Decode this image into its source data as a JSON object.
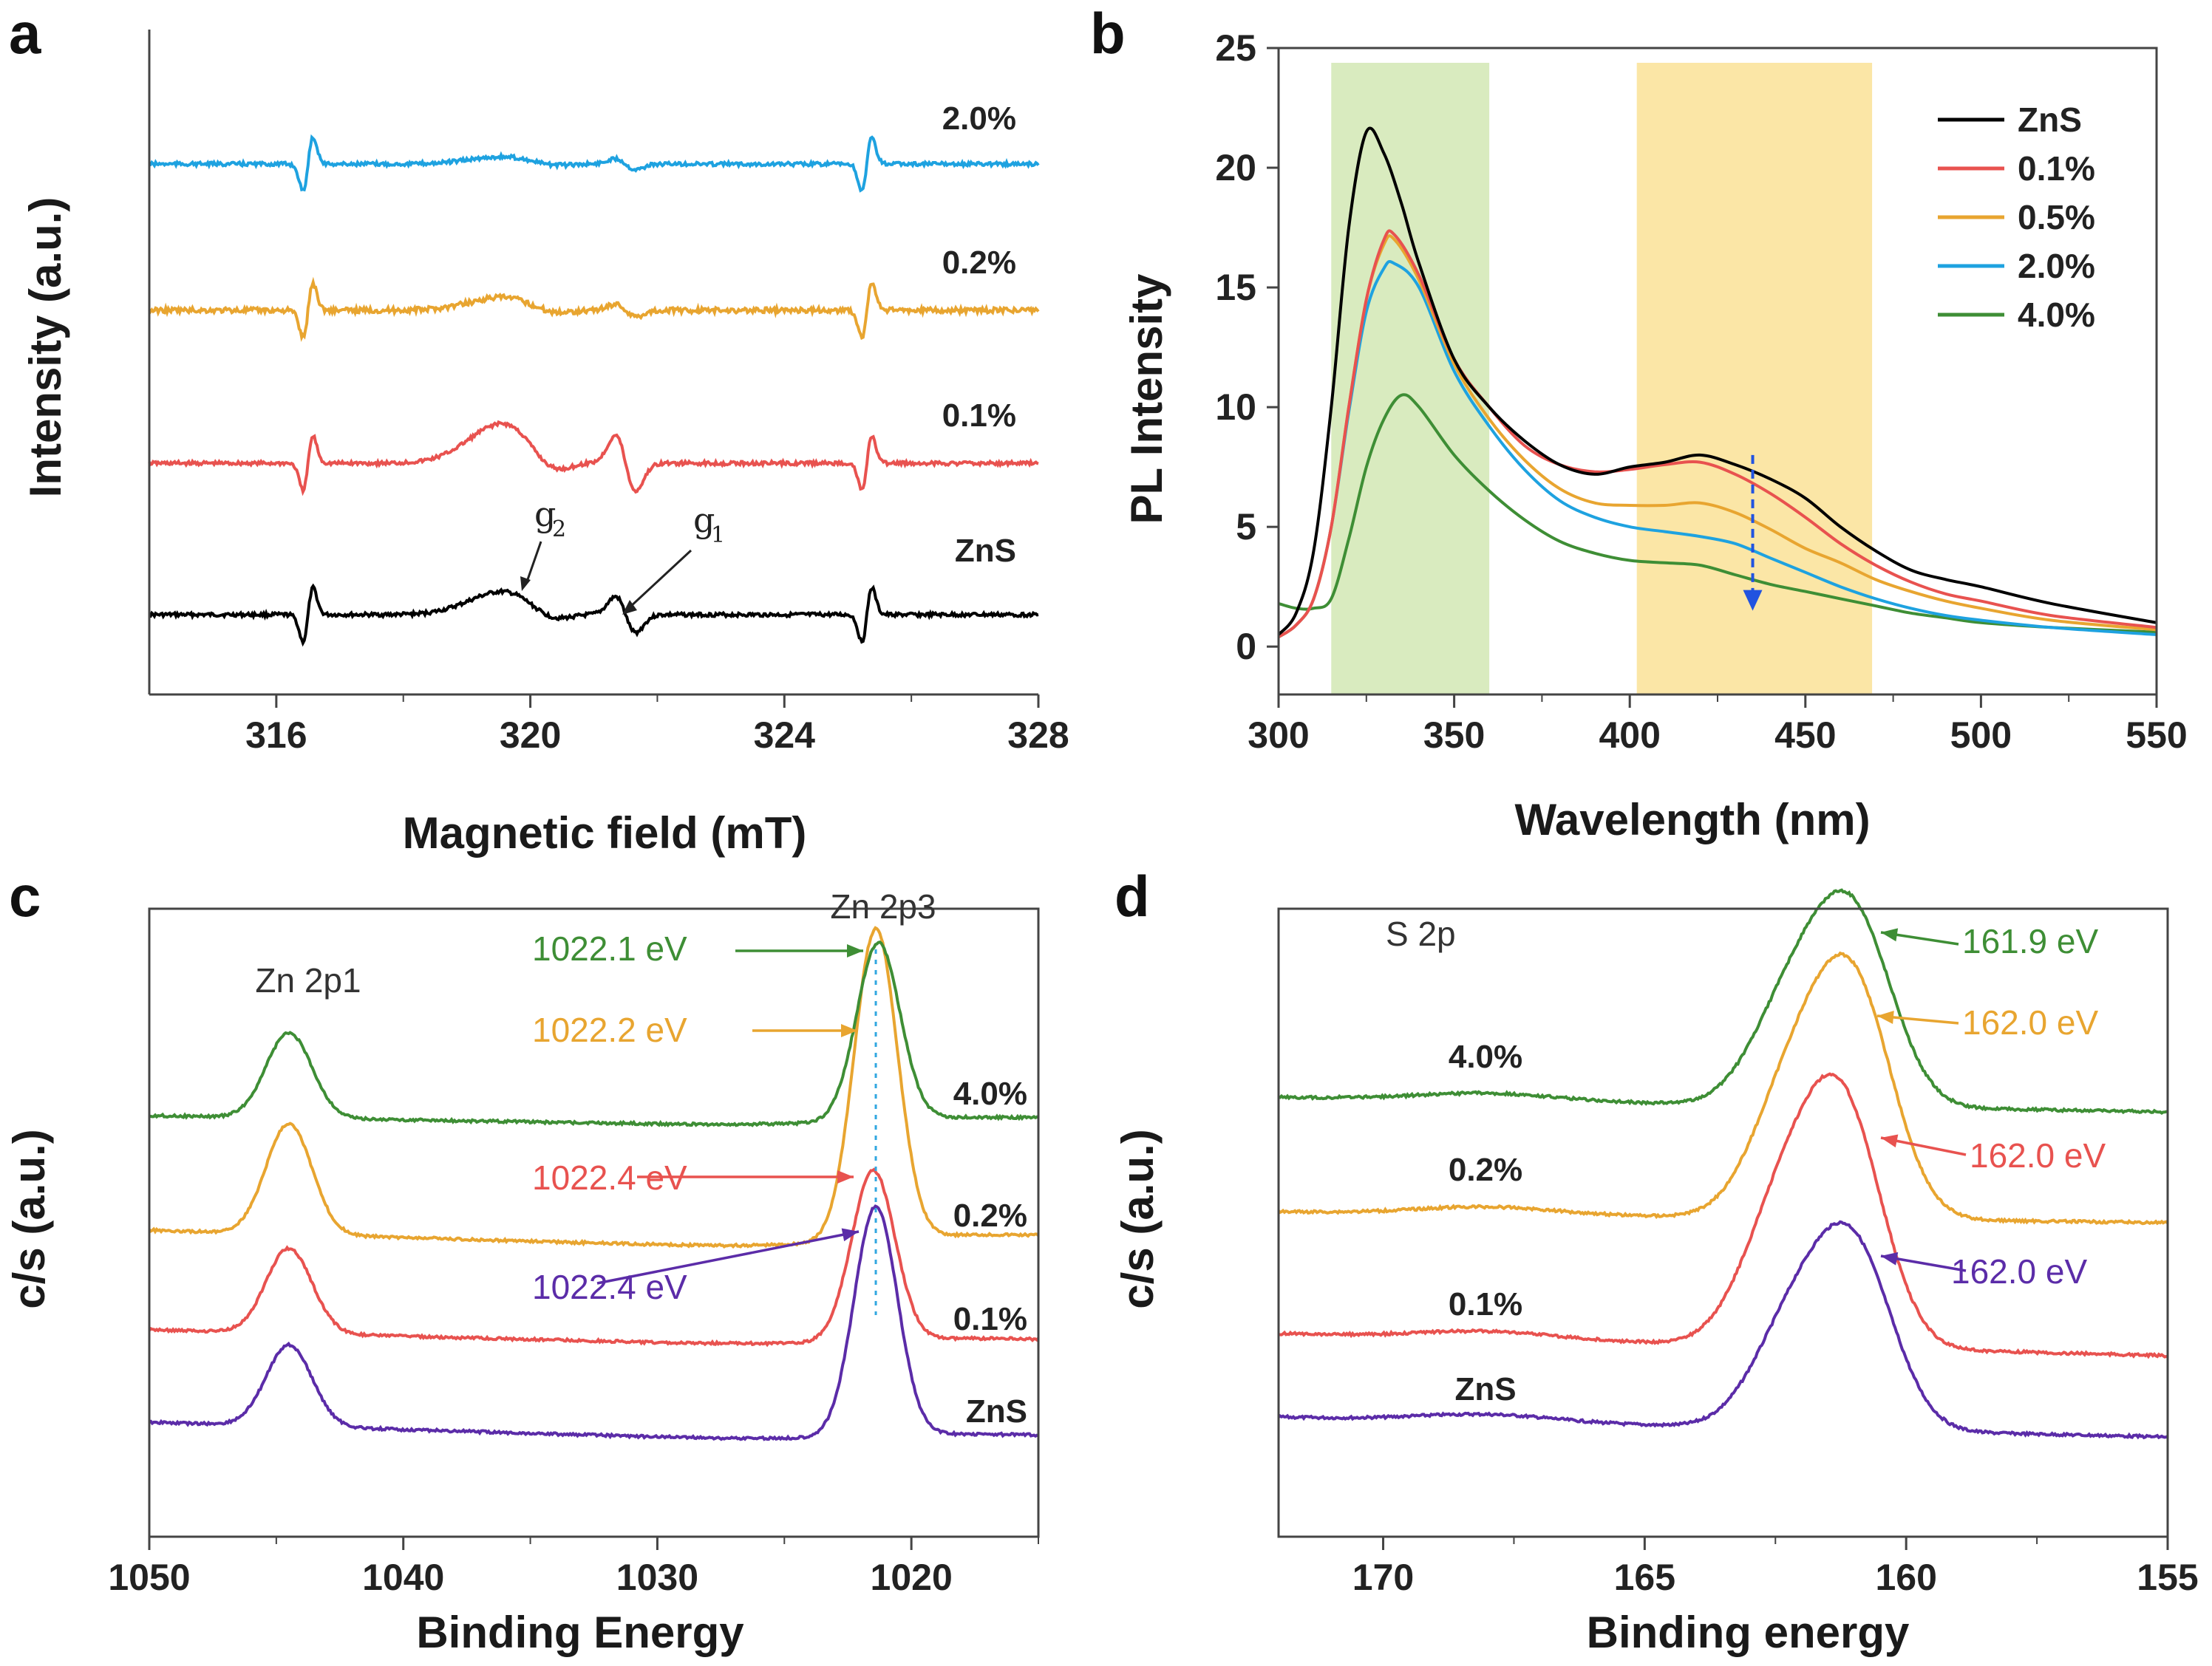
{
  "chart_data": [
    {
      "panel": "a",
      "type": "line",
      "xlabel": "Magnetic field (mT)",
      "ylabel": "Intensity (a.u.)",
      "xlim": [
        314,
        328
      ],
      "x_ticks": [
        "316",
        "320",
        "324",
        "328"
      ],
      "series": [
        {
          "name": "ZnS",
          "color": "#000000"
        },
        {
          "name": "0.1%",
          "color": "#e8524f"
        },
        {
          "name": "0.2%",
          "color": "#e8a530"
        },
        {
          "name": "2.0%",
          "color": "#1ea2e0"
        }
      ],
      "features": {
        "sharp_lines_mT": [
          316.5,
          325.3
        ],
        "g2_mT": 319.8,
        "g1_mT": 321.5
      },
      "annotations": {
        "g2": "g",
        "g2_sub": "2",
        "g1": "g",
        "g1_sub": "1"
      }
    },
    {
      "panel": "b",
      "type": "line",
      "xlabel": "Wavelength (nm)",
      "ylabel": "PL Intensity",
      "xlim": [
        300,
        550
      ],
      "ylim": [
        -2,
        25
      ],
      "x_ticks": [
        "300",
        "350",
        "400",
        "450",
        "500",
        "550"
      ],
      "y_ticks": [
        "0",
        "5",
        "10",
        "15",
        "20",
        "25"
      ],
      "shaded_regions": [
        {
          "x0": 315,
          "x1": 360,
          "color": "#d9ebbf"
        },
        {
          "x0": 402,
          "x1": 469,
          "color": "#fbe6a6"
        }
      ],
      "arrow": {
        "x": 435,
        "y_from": 8.0,
        "y_to": 1.5,
        "color": "#2153e0"
      },
      "series": [
        {
          "name": "ZnS",
          "color": "#000000",
          "points": [
            [
              300,
              0.5
            ],
            [
              305,
              1.4
            ],
            [
              310,
              4
            ],
            [
              315,
              10
            ],
            [
              320,
              17.5
            ],
            [
              325,
              21.5
            ],
            [
              330,
              20.6
            ],
            [
              335,
              18.5
            ],
            [
              340,
              16
            ],
            [
              350,
              12
            ],
            [
              360,
              10
            ],
            [
              370,
              8.6
            ],
            [
              380,
              7.6
            ],
            [
              390,
              7.2
            ],
            [
              400,
              7.5
            ],
            [
              410,
              7.7
            ],
            [
              420,
              8.0
            ],
            [
              430,
              7.6
            ],
            [
              440,
              7.0
            ],
            [
              450,
              6.2
            ],
            [
              460,
              5.0
            ],
            [
              470,
              4.0
            ],
            [
              480,
              3.2
            ],
            [
              490,
              2.8
            ],
            [
              500,
              2.5
            ],
            [
              520,
              1.8
            ],
            [
              550,
              1.0
            ]
          ]
        },
        {
          "name": "0.1%",
          "color": "#e8524f",
          "points": [
            [
              300,
              0.4
            ],
            [
              305,
              0.9
            ],
            [
              310,
              2
            ],
            [
              315,
              5
            ],
            [
              320,
              10
            ],
            [
              325,
              14.5
            ],
            [
              330,
              17.0
            ],
            [
              333,
              17.2
            ],
            [
              340,
              15.5
            ],
            [
              350,
              12
            ],
            [
              360,
              10
            ],
            [
              370,
              8.4
            ],
            [
              380,
              7.6
            ],
            [
              390,
              7.3
            ],
            [
              400,
              7.4
            ],
            [
              410,
              7.6
            ],
            [
              420,
              7.7
            ],
            [
              430,
              7.2
            ],
            [
              440,
              6.4
            ],
            [
              450,
              5.4
            ],
            [
              460,
              4.3
            ],
            [
              470,
              3.4
            ],
            [
              480,
              2.7
            ],
            [
              490,
              2.2
            ],
            [
              500,
              1.9
            ],
            [
              520,
              1.3
            ],
            [
              550,
              0.8
            ]
          ]
        },
        {
          "name": "0.5%",
          "color": "#e8a530",
          "points": [
            [
              300,
              0.4
            ],
            [
              305,
              0.9
            ],
            [
              310,
              2
            ],
            [
              315,
              5
            ],
            [
              320,
              10
            ],
            [
              325,
              14.5
            ],
            [
              330,
              16.8
            ],
            [
              333,
              17.0
            ],
            [
              340,
              15.3
            ],
            [
              350,
              11.8
            ],
            [
              360,
              9.5
            ],
            [
              370,
              7.8
            ],
            [
              380,
              6.6
            ],
            [
              390,
              6.0
            ],
            [
              400,
              5.9
            ],
            [
              410,
              5.9
            ],
            [
              420,
              6.0
            ],
            [
              430,
              5.6
            ],
            [
              440,
              4.9
            ],
            [
              450,
              4.1
            ],
            [
              460,
              3.5
            ],
            [
              470,
              2.8
            ],
            [
              480,
              2.3
            ],
            [
              490,
              1.9
            ],
            [
              500,
              1.6
            ],
            [
              520,
              1.1
            ],
            [
              550,
              0.7
            ]
          ]
        },
        {
          "name": "2.0%",
          "color": "#1ea2e0",
          "points": [
            [
              300,
              0.4
            ],
            [
              305,
              0.9
            ],
            [
              310,
              2
            ],
            [
              315,
              5
            ],
            [
              320,
              9.8
            ],
            [
              325,
              14
            ],
            [
              330,
              15.8
            ],
            [
              333,
              16.0
            ],
            [
              340,
              15.0
            ],
            [
              350,
              11.5
            ],
            [
              360,
              9.2
            ],
            [
              370,
              7.4
            ],
            [
              380,
              6.1
            ],
            [
              390,
              5.4
            ],
            [
              400,
              5.0
            ],
            [
              410,
              4.8
            ],
            [
              420,
              4.6
            ],
            [
              430,
              4.3
            ],
            [
              440,
              3.7
            ],
            [
              450,
              3.1
            ],
            [
              460,
              2.5
            ],
            [
              470,
              2.0
            ],
            [
              480,
              1.6
            ],
            [
              490,
              1.3
            ],
            [
              500,
              1.1
            ],
            [
              520,
              0.8
            ],
            [
              550,
              0.5
            ]
          ]
        },
        {
          "name": "4.0%",
          "color": "#3e8e35",
          "points": [
            [
              300,
              1.8
            ],
            [
              305,
              1.6
            ],
            [
              310,
              1.6
            ],
            [
              315,
              2
            ],
            [
              320,
              4.5
            ],
            [
              325,
              7.5
            ],
            [
              330,
              9.5
            ],
            [
              335,
              10.5
            ],
            [
              340,
              10.0
            ],
            [
              350,
              8.0
            ],
            [
              360,
              6.5
            ],
            [
              370,
              5.3
            ],
            [
              380,
              4.4
            ],
            [
              390,
              3.9
            ],
            [
              400,
              3.6
            ],
            [
              410,
              3.5
            ],
            [
              420,
              3.4
            ],
            [
              430,
              3.0
            ],
            [
              440,
              2.6
            ],
            [
              450,
              2.3
            ],
            [
              460,
              2.0
            ],
            [
              470,
              1.7
            ],
            [
              480,
              1.4
            ],
            [
              490,
              1.2
            ],
            [
              500,
              1.0
            ],
            [
              520,
              0.8
            ],
            [
              550,
              0.6
            ]
          ]
        }
      ]
    },
    {
      "panel": "c",
      "type": "line",
      "xlabel": "Binding Energy",
      "ylabel": "c/s (a.u.)",
      "xlim": [
        1050,
        1015
      ],
      "x_ticks": [
        "1050",
        "1040",
        "1030",
        "1020"
      ],
      "peak_labels": [
        "Zn 2p1",
        "Zn 2p3"
      ],
      "series": [
        {
          "name": "ZnS",
          "color": "#5b2ca8",
          "peak_label": "1022.4 eV"
        },
        {
          "name": "0.1%",
          "color": "#e8524f",
          "peak_label": "1022.4 eV"
        },
        {
          "name": "0.2%",
          "color": "#e8a530",
          "peak_label": "1022.2 eV"
        },
        {
          "name": "4.0%",
          "color": "#3e8e35",
          "peak_label": "1022.1 eV"
        }
      ]
    },
    {
      "panel": "d",
      "type": "line",
      "xlabel": "Binding energy",
      "ylabel": "c/s (a.u.)",
      "xlim": [
        172,
        155
      ],
      "x_ticks": [
        "170",
        "165",
        "160",
        "155"
      ],
      "peak_labels": [
        "S 2p"
      ],
      "series": [
        {
          "name": "ZnS",
          "color": "#5b2ca8",
          "peak_label": "162.0 eV"
        },
        {
          "name": "0.1%",
          "color": "#e8524f",
          "peak_label": "162.0 eV"
        },
        {
          "name": "0.2%",
          "color": "#e8a530",
          "peak_label": "162.0 eV"
        },
        {
          "name": "4.0%",
          "color": "#3e8e35",
          "peak_label": "161.9 eV"
        }
      ]
    }
  ]
}
